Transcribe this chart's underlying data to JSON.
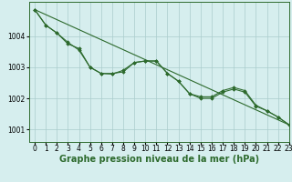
{
  "title": "Graphe pression niveau de la mer (hPa)",
  "background_color": "#d6eeee",
  "grid_color": "#aacccc",
  "line_color": "#2d6a2d",
  "marker_color": "#2d6a2d",
  "xlim": [
    -0.5,
    23
  ],
  "ylim": [
    1000.6,
    1005.1
  ],
  "yticks": [
    1001,
    1002,
    1003,
    1004
  ],
  "xticks": [
    0,
    1,
    2,
    3,
    4,
    5,
    6,
    7,
    8,
    9,
    10,
    11,
    12,
    13,
    14,
    15,
    16,
    17,
    18,
    19,
    20,
    21,
    22,
    23
  ],
  "series1_x": [
    0,
    1,
    2,
    3,
    4,
    5,
    6,
    7,
    8,
    9,
    10,
    11,
    12,
    13,
    14,
    15,
    16,
    17,
    18,
    19,
    20,
    21,
    22,
    23
  ],
  "series1_y": [
    1004.85,
    1004.35,
    1004.1,
    1003.8,
    1003.55,
    1003.0,
    1002.8,
    1002.8,
    1002.85,
    1003.15,
    1003.2,
    1003.2,
    1002.8,
    1002.55,
    1002.15,
    1002.0,
    1002.0,
    1002.2,
    1002.3,
    1002.2,
    1001.75,
    1001.6,
    1001.4,
    1001.15
  ],
  "series2_x": [
    0,
    1,
    2,
    3,
    4,
    5,
    6,
    7,
    8,
    9,
    10,
    11,
    12,
    13,
    14,
    15,
    16,
    17,
    18,
    19,
    20,
    21,
    22,
    23
  ],
  "series2_y": [
    1004.85,
    1004.35,
    1004.1,
    1003.75,
    1003.6,
    1003.0,
    1002.8,
    1002.78,
    1002.9,
    1003.15,
    1003.2,
    1003.2,
    1002.8,
    1002.55,
    1002.15,
    1002.05,
    1002.05,
    1002.25,
    1002.35,
    1002.25,
    1001.78,
    1001.6,
    1001.4,
    1001.15
  ],
  "straight_line_x": [
    0,
    23
  ],
  "straight_line_y": [
    1004.85,
    1001.15
  ],
  "title_fontsize": 7,
  "tick_fontsize": 5.5
}
